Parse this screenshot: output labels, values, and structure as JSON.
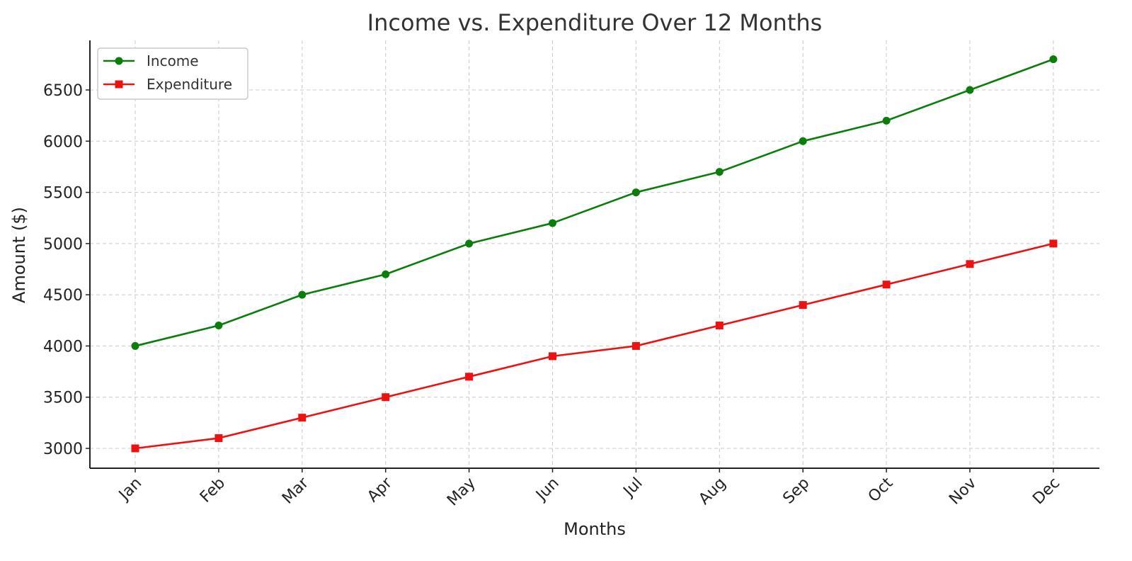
{
  "chart_data": {
    "type": "line",
    "title": "Income vs. Expenditure Over 12 Months",
    "xlabel": "Months",
    "ylabel": "Amount ($)",
    "categories": [
      "Jan",
      "Feb",
      "Mar",
      "Apr",
      "May",
      "Jun",
      "Jul",
      "Aug",
      "Sep",
      "Oct",
      "Nov",
      "Dec"
    ],
    "ylim": [
      2800,
      6900
    ],
    "yticks": [
      3000,
      3500,
      4000,
      4500,
      5000,
      5500,
      6000,
      6500
    ],
    "grid": true,
    "legend_position": "top-left",
    "series": [
      {
        "name": "Income",
        "color": "#0a7d0a",
        "marker": "circle",
        "values": [
          4000,
          4200,
          4500,
          4700,
          5000,
          5200,
          5500,
          5700,
          6000,
          6200,
          6500,
          6800
        ]
      },
      {
        "name": "Expenditure",
        "color": "#ee1111",
        "marker": "square",
        "values": [
          3000,
          3100,
          3300,
          3500,
          3700,
          3900,
          4000,
          4200,
          4400,
          4600,
          4800,
          5000
        ]
      }
    ]
  }
}
